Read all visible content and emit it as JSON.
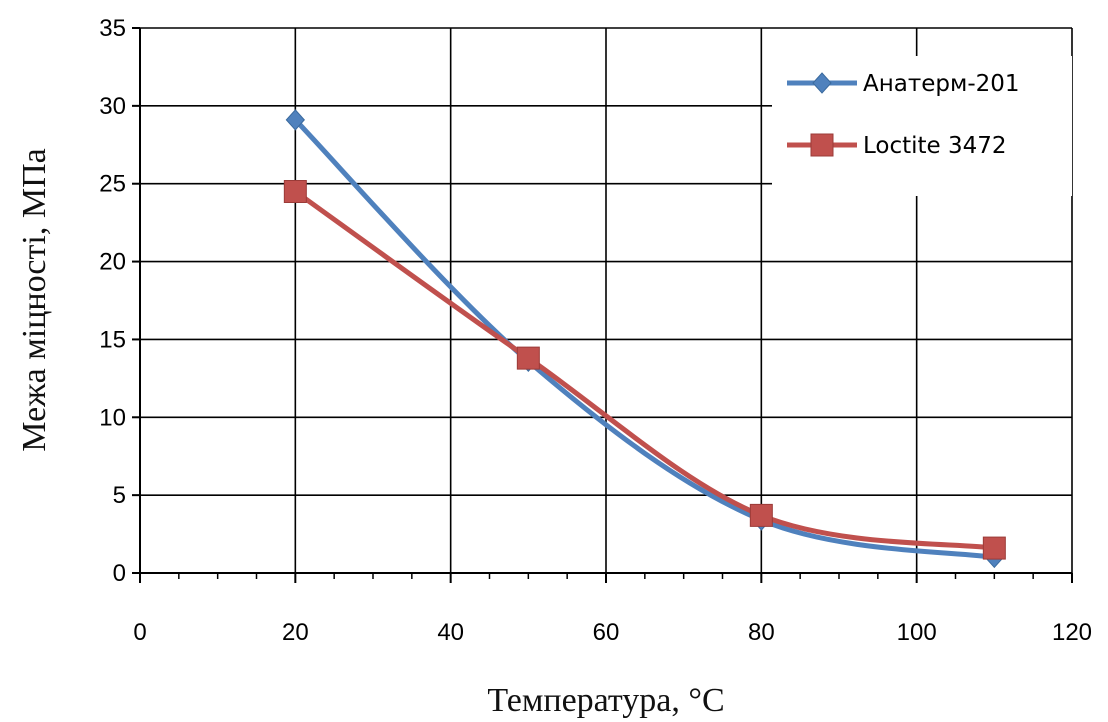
{
  "chart_data": {
    "type": "line",
    "title": "",
    "xlabel": "Температура, °C",
    "ylabel": "Межа міцності, МПа",
    "xlim": [
      0,
      120
    ],
    "ylim": [
      0,
      35
    ],
    "xticks": [
      0,
      20,
      40,
      60,
      80,
      100,
      120
    ],
    "yticks": [
      0,
      5,
      10,
      15,
      20,
      25,
      30,
      35
    ],
    "grid": true,
    "smooth": true,
    "legend_position": "top-right",
    "series": [
      {
        "name": "Анатерм-201",
        "color": "#4f81bd",
        "marker": "diamond",
        "x": [
          20,
          50,
          80,
          110
        ],
        "y": [
          29.1,
          13.6,
          3.4,
          1.0
        ]
      },
      {
        "name": "Loctite 3472",
        "color": "#c0504d",
        "marker": "square",
        "x": [
          20,
          50,
          80,
          110
        ],
        "y": [
          24.5,
          13.8,
          3.7,
          1.6
        ]
      }
    ]
  }
}
